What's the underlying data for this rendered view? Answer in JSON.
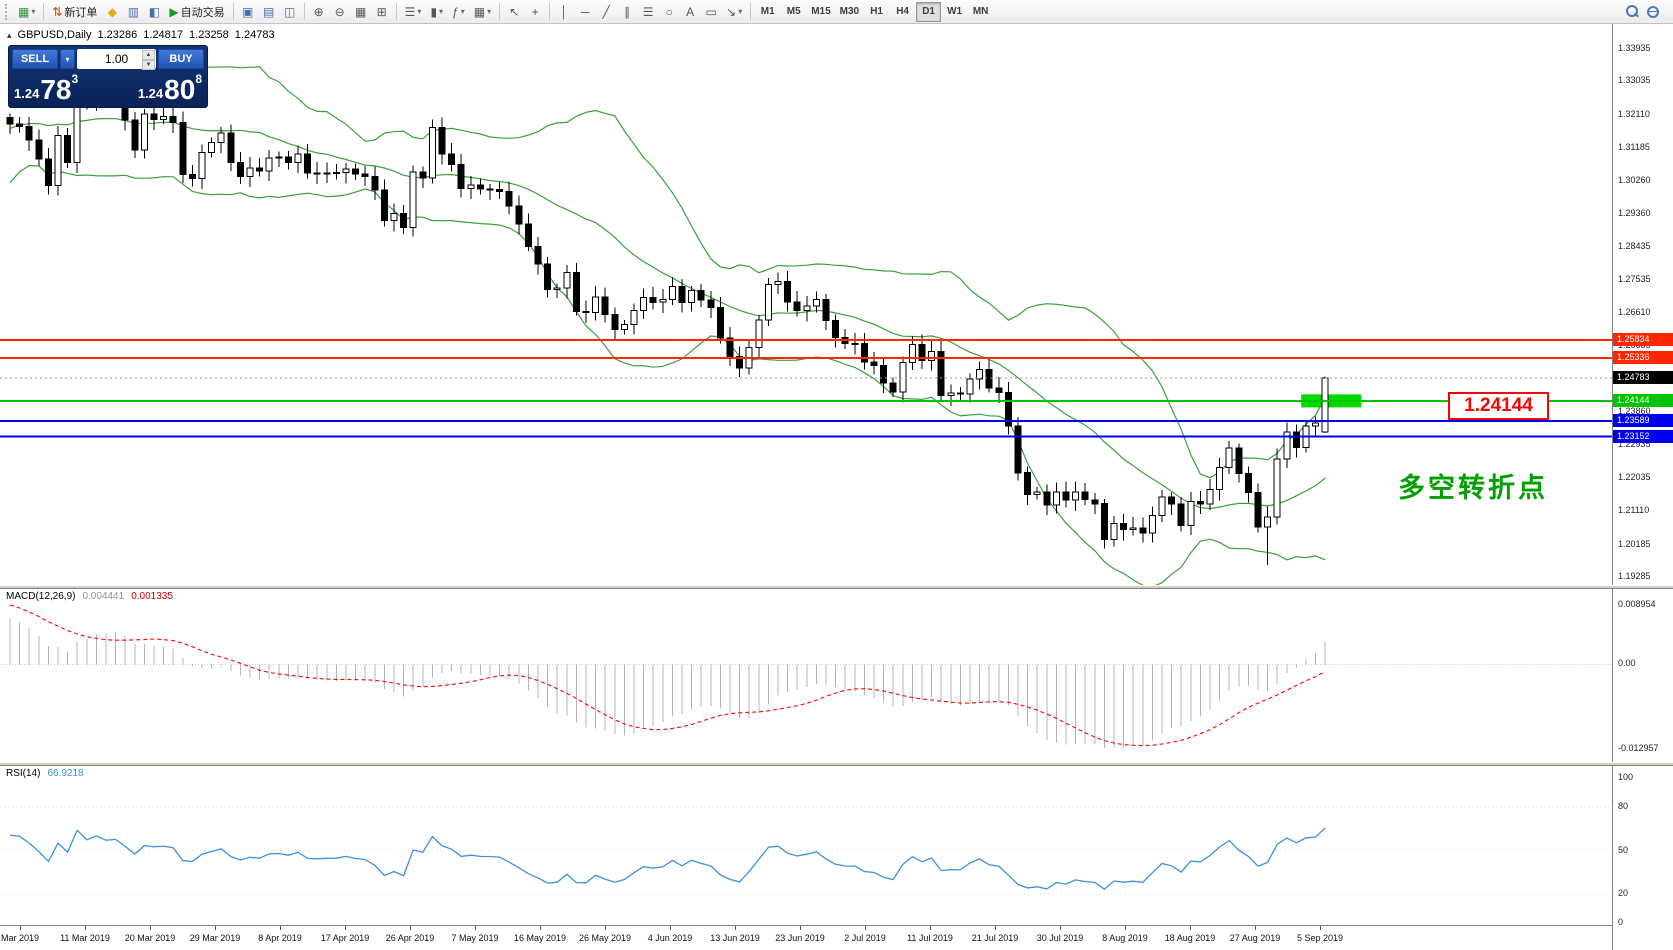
{
  "toolbar": {
    "new_order_label": "新订单",
    "auto_trading_label": "自动交易",
    "timeframes": [
      "M1",
      "M5",
      "M15",
      "M30",
      "H1",
      "H4",
      "D1",
      "W1",
      "MN"
    ],
    "active_timeframe": "D1"
  },
  "icons": {
    "new_chart": "▦",
    "caret": "▾",
    "new_order": "⇅",
    "favorites": "◆",
    "market_watch": "▥",
    "data_window": "◧",
    "auto_play": "▶",
    "tile_1": "▣",
    "tile_2": "▤",
    "tile_3": "◫",
    "bars": "☰",
    "candles": "▮",
    "line_chart": "≈",
    "zoom_in": "⊕",
    "zoom_out": "⊖",
    "grid": "▦",
    "shift": "⊞",
    "indicators": "ƒ",
    "periods": "○",
    "templates": "▦",
    "cursor": "↖",
    "crosshair": "+",
    "vline": "│",
    "hline": "─",
    "trend": "╱",
    "channel": "∥",
    "fibo": "☰",
    "shapes": "○",
    "text": "A",
    "label": "▭",
    "arrows": "↘"
  },
  "chart_header": {
    "symbol": "GBPUSD,Daily",
    "open": "1.23286",
    "high": "1.24817",
    "low": "1.23258",
    "close": "1.24783",
    "toggle": "▴"
  },
  "trade_panel": {
    "sell_label": "SELL",
    "buy_label": "BUY",
    "volume": "1.00",
    "sell_price": {
      "small": "1.24",
      "big": "78",
      "sup": "3"
    },
    "buy_price": {
      "small": "1.24",
      "big": "80",
      "sup": "8"
    }
  },
  "macd": {
    "title": "MACD(12,26,9)",
    "value_main": "0.004441",
    "value_signal": "0.001335",
    "scale_max": "0.008954",
    "scale_zero": "0.00",
    "scale_min": "-0.012957"
  },
  "rsi": {
    "title": "RSI(14)",
    "value": "66.9218",
    "scale": [
      "100",
      "80",
      "50",
      "20",
      "0"
    ]
  },
  "annotations": {
    "level_label": "1.24144",
    "note": "多空转折点",
    "highlight_rect": {
      "price": 1.24144,
      "color": "#00d800"
    }
  },
  "price_axis": {
    "labels": [
      "1.33935",
      "1.33035",
      "1.32110",
      "1.31185",
      "1.30260",
      "1.29360",
      "1.28435",
      "1.27535",
      "1.26610",
      "1.25685",
      "1.24760",
      "1.23860",
      "1.22935",
      "1.22035",
      "1.21110",
      "1.20185",
      "1.19285"
    ]
  },
  "levels": [
    {
      "label": "1.25834",
      "price": 1.25834,
      "color": "#ff2600",
      "line": "solid",
      "line_color": "#ff2600",
      "width": 2
    },
    {
      "label": "1.25336",
      "price": 1.25336,
      "color": "#ff2600",
      "line": "solid",
      "line_color": "#ff2600",
      "width": 2
    },
    {
      "label": "1.24783",
      "price": 1.24783,
      "color": "#000000",
      "line": "dotted",
      "line_color": "#9a9a9a",
      "width": 1
    },
    {
      "label": "1.24144",
      "price": 1.24144,
      "color": "#00c400",
      "line": "solid",
      "line_color": "#00c400",
      "width": 2
    },
    {
      "label": "1.23589",
      "price": 1.23589,
      "color": "#0000ee",
      "line": "solid",
      "line_color": "#0000ee",
      "width": 2
    },
    {
      "label": "1.23152",
      "price": 1.23152,
      "color": "#0000ee",
      "line": "solid",
      "line_color": "#0000ee",
      "width": 2
    }
  ],
  "dates": [
    "Mar 2019",
    "11 Mar 2019",
    "20 Mar 2019",
    "29 Mar 2019",
    "8 Apr 2019",
    "17 Apr 2019",
    "26 Apr 2019",
    "7 May 2019",
    "16 May 2019",
    "26 May 2019",
    "4 Jun 2019",
    "13 Jun 2019",
    "23 Jun 2019",
    "2 Jul 2019",
    "11 Jul 2019",
    "21 Jul 2019",
    "30 Jul 2019",
    "8 Aug 2019",
    "18 Aug 2019",
    "27 Aug 2019",
    "5 Sep 2019"
  ],
  "chart_data": {
    "type": "candlestick",
    "symbol": "GBPUSD",
    "timeframe": "Daily",
    "bb_period": 20,
    "bb_deviation": 2,
    "pre_closes": [
      1.279,
      1.283,
      1.288,
      1.292,
      1.288,
      1.285,
      1.29,
      1.294,
      1.298,
      1.302,
      1.296,
      1.3,
      1.305,
      1.309,
      1.312,
      1.308,
      1.311,
      1.315,
      1.318,
      1.321,
      1.324,
      1.327,
      1.33,
      1.326,
      1.322,
      1.318,
      1.315,
      1.319,
      1.323,
      1.32
    ],
    "closes": [
      1.3182,
      1.3176,
      1.3138,
      1.3086,
      1.3012,
      1.3151,
      1.3076,
      1.3336,
      1.3243,
      1.3298,
      1.3255,
      1.3266,
      1.3194,
      1.311,
      1.321,
      1.3195,
      1.3204,
      1.3187,
      1.3042,
      1.3032,
      1.3103,
      1.3131,
      1.3157,
      1.3076,
      1.3037,
      1.3061,
      1.3052,
      1.3088,
      1.3091,
      1.3076,
      1.3099,
      1.3047,
      1.3044,
      1.3047,
      1.3048,
      1.3058,
      1.3044,
      1.3037,
      1.2999,
      1.2915,
      1.2934,
      1.2896,
      1.305,
      1.3033,
      1.3173,
      1.31,
      1.307,
      1.3003,
      1.3013,
      1.3002,
      1.3001,
      1.2996,
      1.2955,
      1.2905,
      1.2843,
      1.2794,
      1.2723,
      1.2728,
      1.2771,
      1.2663,
      1.266,
      1.2703,
      1.2654,
      1.2612,
      1.2627,
      1.2665,
      1.2701,
      1.2688,
      1.2695,
      1.2732,
      1.2687,
      1.272,
      1.2694,
      1.2674,
      1.2589,
      1.2538,
      1.2506,
      1.2563,
      1.2639,
      1.2737,
      1.2746,
      1.2689,
      1.2665,
      1.2678,
      1.2696,
      1.2637,
      1.259,
      1.2574,
      1.2573,
      1.2522,
      1.2513,
      1.2464,
      1.2439,
      1.2521,
      1.2571,
      1.2527,
      1.2552,
      1.243,
      1.2436,
      1.2433,
      1.2475,
      1.2501,
      1.245,
      1.2438,
      1.2345,
      1.2215,
      1.2155,
      1.2161,
      1.2126,
      1.2161,
      1.2139,
      1.2162,
      1.214,
      1.2129,
      1.203,
      1.2074,
      1.2057,
      1.2062,
      1.2048,
      1.2096,
      1.2148,
      1.2128,
      1.2069,
      1.2135,
      1.2128,
      1.2168,
      1.223,
      1.2283,
      1.2213,
      1.216,
      1.2064,
      1.2092,
      1.2253,
      1.2328,
      1.2285,
      1.2345,
      1.2353,
      1.24783
    ],
    "overrides": {
      "7": {
        "high": 1.335
      },
      "131": {
        "low": 1.1959
      },
      "137": {
        "open": 1.23286,
        "high": 1.24817,
        "low": 1.23258
      }
    }
  }
}
